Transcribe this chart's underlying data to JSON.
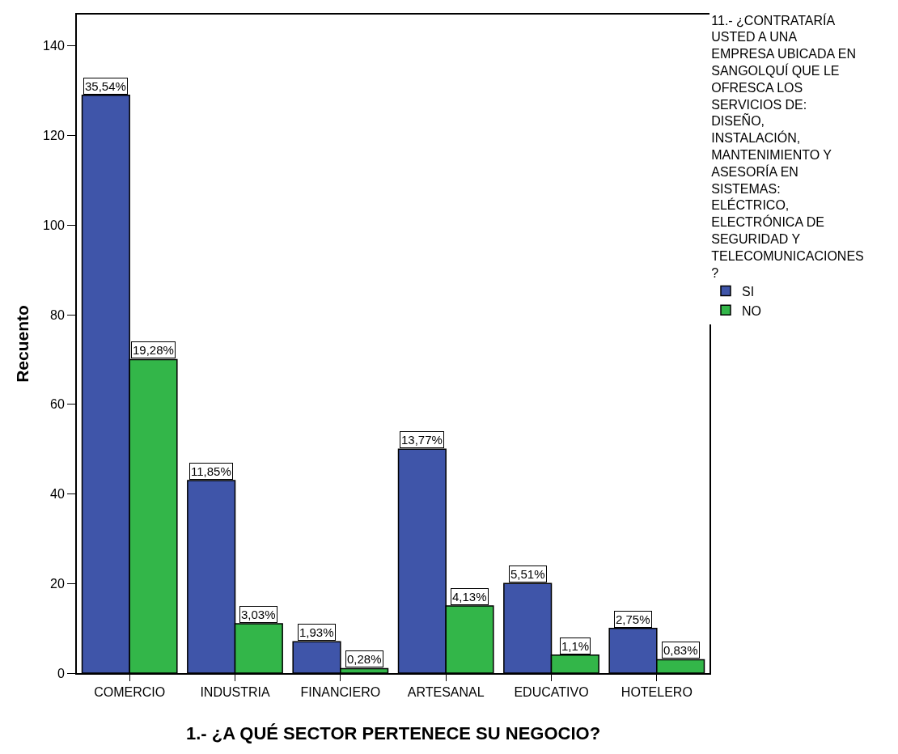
{
  "chart_data": {
    "type": "bar",
    "xlabel": "1.- ¿A QUÉ SECTOR PERTENECE SU NEGOCIO?",
    "ylabel": "Recuento",
    "legend_title": "11.- ¿CONTRATARÍA USTED A UNA EMPRESA UBICADA EN SANGOLQUÍ QUE LE OFRESCA LOS SERVICIOS DE: DISEÑO, INSTALACIÓN, MANTENIMIENTO Y ASESORÍA EN SISTEMAS: ELÉCTRICO, ELECTRÓNICA DE SEGURIDAD Y TELECOMUNICACIONES?",
    "categories": [
      "COMERCIO",
      "INDUSTRIA",
      "FINANCIERO",
      "ARTESANAL",
      "EDUCATIVO",
      "HOTELERO"
    ],
    "series": [
      {
        "name": "SI",
        "color": "#3f55a9",
        "values": [
          129,
          43,
          7,
          50,
          20,
          10
        ]
      },
      {
        "name": "NO",
        "color": "#33b649",
        "values": [
          70,
          11,
          1,
          15,
          4,
          3
        ]
      }
    ],
    "annotations": [
      {
        "text": "35,54%",
        "x": "COMERCIO",
        "y": 129
      },
      {
        "text": "19,28%",
        "x": "COMERCIO",
        "y": 70
      },
      {
        "text": "11,85%",
        "x": "INDUSTRIA",
        "y": 43
      },
      {
        "text": "3,03%",
        "x": "INDUSTRIA",
        "y": 11
      },
      {
        "text": "1,93%",
        "x": "FINANCIERO",
        "y": 7
      },
      {
        "text": "0,28%",
        "x": "FINANCIERO",
        "y": 1
      },
      {
        "text": "13,77%",
        "x": "ARTESANAL",
        "y": 50
      },
      {
        "text": "4,13%",
        "x": "ARTESANAL",
        "y": 15
      },
      {
        "text": "5,51%",
        "x": "EDUCATIVO",
        "y": 20
      },
      {
        "text": "1,1%",
        "x": "EDUCATIVO",
        "y": 4
      },
      {
        "text": "2,75%",
        "x": "HOTELERO",
        "y": 10
      },
      {
        "text": "0,83%",
        "x": "HOTELERO",
        "y": 3
      }
    ],
    "ylim": [
      0,
      147
    ],
    "yticks": [
      0,
      20,
      40,
      60,
      80,
      100,
      120,
      140
    ],
    "grid": false,
    "legend": "right"
  }
}
